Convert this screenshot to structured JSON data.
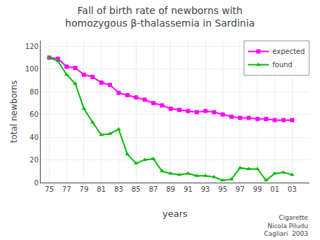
{
  "chart_data": {
    "type": "line",
    "title": "Fall of birth rate of newborns with\nhomozygous β-thalassemia in Sardinia",
    "xlabel": "years",
    "ylabel": "total newborns",
    "x": [
      75,
      76,
      77,
      78,
      79,
      80,
      81,
      82,
      83,
      84,
      85,
      86,
      87,
      88,
      89,
      90,
      91,
      92,
      93,
      94,
      95,
      96,
      97,
      98,
      99,
      100,
      101,
      102,
      103
    ],
    "series": [
      {
        "name": "expected",
        "color": "#ff00ff",
        "marker": "square",
        "line_style": "solid",
        "values": [
          110,
          109,
          102,
          101,
          95,
          93,
          88,
          86,
          79,
          77,
          75,
          73,
          70,
          68,
          65,
          64,
          63,
          62,
          63,
          62,
          60,
          58,
          57,
          57,
          56,
          56,
          55,
          55,
          55
        ]
      },
      {
        "name": "found",
        "color": "#00bb00",
        "marker": "triangle-up",
        "line_style": "solid",
        "values": [
          110,
          107,
          95,
          87,
          65,
          53,
          42,
          43,
          47,
          25,
          17,
          20,
          21,
          10,
          8,
          7,
          8,
          6,
          6,
          5,
          2,
          3,
          13,
          12,
          12,
          2,
          8,
          9,
          7
        ]
      }
    ],
    "xlim": [
      74,
      105
    ],
    "xticks": [
      75,
      77,
      79,
      81,
      83,
      85,
      87,
      89,
      91,
      93,
      95,
      97,
      99,
      {
        "value": 101,
        "label": "01"
      },
      {
        "value": 103,
        "label": "03"
      }
    ],
    "ylim": [
      0,
      125
    ],
    "yticks": [
      0,
      20,
      40,
      60,
      80,
      100,
      120
    ],
    "legend": "upper right",
    "annotations": [
      {
        "text": "Cigarette\nNicola Piludu\nCagliari  2003"
      }
    ]
  }
}
